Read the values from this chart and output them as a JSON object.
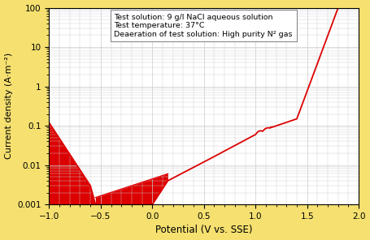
{
  "xlabel": "Potential (V vs. SSE)",
  "ylabel": "Current density (A·m⁻²)",
  "xlim": [
    -1,
    2
  ],
  "ylim_log": [
    0.001,
    100
  ],
  "annotation_lines": [
    "Test solution: 9 g/l NaCl aqueous solution",
    "Test temperature: 37°C",
    "Deaeration of test solution: High purity N² gas"
  ],
  "line_color": "#dd0000",
  "fill_color": "#dd0000",
  "background_color": "#ffffff",
  "outer_border_color": "#f5e070",
  "grid_color": "#cccccc",
  "xticks": [
    -1,
    -0.5,
    0,
    0.5,
    1,
    1.5,
    2
  ],
  "yticks_log": [
    0.001,
    0.01,
    0.1,
    1,
    10,
    100
  ],
  "ytick_labels": [
    "0.001",
    "0.01",
    "0.1",
    "1",
    "10",
    "100"
  ]
}
